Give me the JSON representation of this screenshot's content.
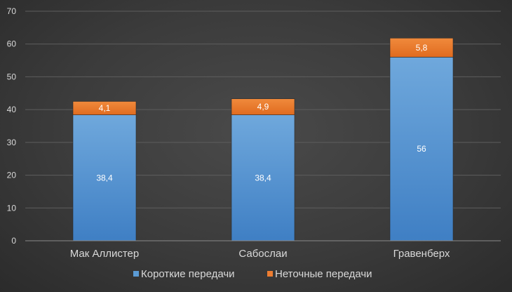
{
  "chart_data": {
    "type": "bar",
    "stacked": true,
    "title": "",
    "xlabel": "",
    "ylabel": "",
    "categories": [
      "Мак Аллистер",
      "Сабослаи",
      "Гравенберх"
    ],
    "series": [
      {
        "name": "Короткие передачи",
        "values": [
          38.4,
          38.4,
          56
        ],
        "labels": [
          "38,4",
          "38,4",
          "56"
        ],
        "color": "#5b9bd5"
      },
      {
        "name": "Неточные передачи",
        "values": [
          4.1,
          4.9,
          5.8
        ],
        "labels": [
          "4,1",
          "4,9",
          "5,8"
        ],
        "color": "#ed7d31"
      }
    ],
    "ylim": [
      0,
      70
    ],
    "yticks": [
      "0",
      "10",
      "20",
      "30",
      "40",
      "50",
      "60",
      "70"
    ],
    "grid": true,
    "legend_position": "bottom"
  }
}
